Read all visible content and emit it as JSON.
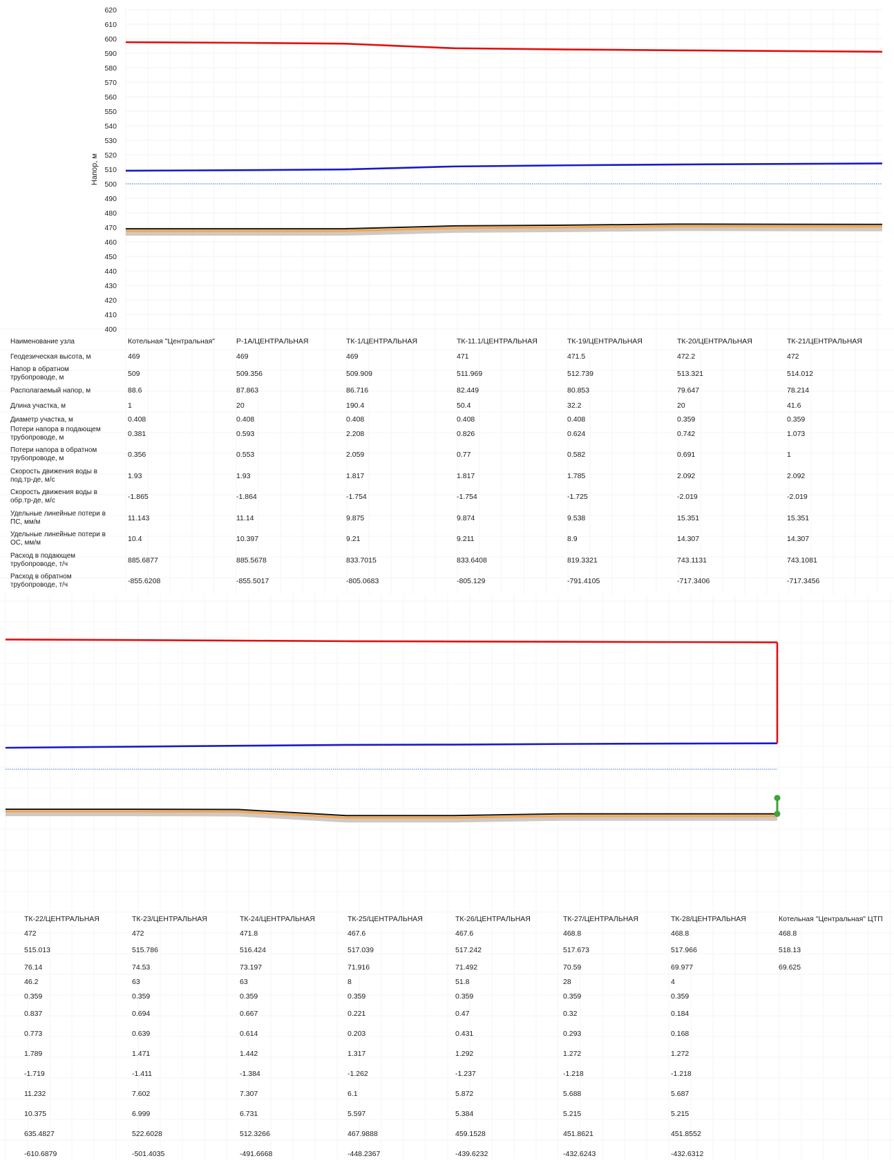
{
  "chart_data": [
    {
      "type": "line",
      "ylabel": "Напор, м",
      "ylim": [
        400,
        620
      ],
      "yticks": [
        400,
        410,
        420,
        430,
        440,
        450,
        460,
        470,
        480,
        490,
        500,
        510,
        520,
        530,
        540,
        550,
        560,
        570,
        580,
        590,
        600,
        610,
        620
      ],
      "static_level": 500,
      "x_nodes": [
        "Котельная \"Центральная\"",
        "Р-1А/ЦЕНТРАЛЬНАЯ",
        "ТК-1/ЦЕНТРАЛЬНАЯ",
        "ТК-11.1/ЦЕНТРАЛЬНАЯ",
        "ТК-19/ЦЕНТРАЛЬНАЯ",
        "ТК-20/ЦЕНТРАЛЬНАЯ",
        "ТК-21/ЦЕНТРАЛЬНАЯ"
      ],
      "series": [
        {
          "color": "#e01010",
          "values": [
            597.6,
            597.2,
            596.6,
            593.4,
            592.6,
            592.0,
            591.0
          ]
        },
        {
          "color": "#1a1ac8",
          "values": [
            509,
            509.356,
            509.909,
            511.969,
            512.739,
            513.321,
            514.012
          ]
        },
        {
          "color": "#111111",
          "values": [
            469,
            469,
            469,
            471,
            471.5,
            472.2,
            472
          ]
        }
      ],
      "table": {
        "header_label": "Наименование узла",
        "row_labels": [
          [
            "Геодезическая высота, м"
          ],
          [
            "Напор в обратном",
            "трубопроводе, м"
          ],
          [
            "Располагаемый напор, м"
          ],
          [
            "Длина участка, м"
          ],
          [
            "Диаметр участка, м"
          ],
          [
            "Потери напора в подающем",
            "трубопроводе, м"
          ],
          [
            "Потери напора в обратном",
            "трубопроводе, м"
          ],
          [
            "Скорость движения воды в",
            "под.тр-де, м/с"
          ],
          [
            "Скорость движения воды в",
            "обр.тр-де, м/с"
          ],
          [
            "Удельные линейные потери в",
            "ПС, мм/м"
          ],
          [
            "Удельные линейные потери в",
            "ОС, мм/м"
          ],
          [
            "Расход в подающем",
            "трубопроводе, т/ч"
          ],
          [
            "Расход в обратном",
            "трубопроводе, т/ч"
          ]
        ],
        "columns": [
          {
            "name": "Котельная \"Центральная\"",
            "values": [
              "469",
              "509",
              "88.6",
              "1",
              "0.408",
              "0.381",
              "0.356",
              "1.93",
              "-1.865",
              "11.143",
              "10.4",
              "885.6877",
              "-855.6208"
            ]
          },
          {
            "name": "Р-1А/ЦЕНТРАЛЬНАЯ",
            "values": [
              "469",
              "509.356",
              "87.863",
              "20",
              "0.408",
              "0.593",
              "0.553",
              "1.93",
              "-1.864",
              "11.14",
              "10.397",
              "885.5678",
              "-855.5017"
            ]
          },
          {
            "name": "ТК-1/ЦЕНТРАЛЬНАЯ",
            "values": [
              "469",
              "509.909",
              "86.716",
              "190.4",
              "0.408",
              "2.208",
              "2.059",
              "1.817",
              "-1.754",
              "9.875",
              "9.21",
              "833.7015",
              "-805.0683"
            ]
          },
          {
            "name": "ТК-11.1/ЦЕНТРАЛЬНАЯ",
            "values": [
              "471",
              "511.969",
              "82.449",
              "50.4",
              "0.408",
              "0.826",
              "0.77",
              "1.817",
              "-1.754",
              "9.874",
              "9.211",
              "833.6408",
              "-805.129"
            ]
          },
          {
            "name": "ТК-19/ЦЕНТРАЛЬНАЯ",
            "values": [
              "471.5",
              "512.739",
              "80.853",
              "32.2",
              "0.408",
              "0.624",
              "0.582",
              "1.785",
              "-1.725",
              "9.538",
              "8.9",
              "819.3321",
              "-791.4105"
            ]
          },
          {
            "name": "ТК-20/ЦЕНТРАЛЬНАЯ",
            "values": [
              "472.2",
              "513.321",
              "79.647",
              "20",
              "0.359",
              "0.742",
              "0.691",
              "2.092",
              "-2.019",
              "15.351",
              "14.307",
              "743.1131",
              "-717.3406"
            ]
          },
          {
            "name": "ТК-21/ЦЕНТРАЛЬНАЯ",
            "values": [
              "472",
              "514.012",
              "78.214",
              "41.6",
              "0.359",
              "1.073",
              "1",
              "2.092",
              "-2.019",
              "15.351",
              "14.307",
              "743.1081",
              "-717.3456"
            ]
          }
        ]
      }
    },
    {
      "type": "line",
      "ylim": [
        400,
        620
      ],
      "static_level": 500,
      "x_nodes": [
        "ТК-22/ЦЕНТРАЛЬНАЯ",
        "ТК-23/ЦЕНТРАЛЬНАЯ",
        "ТК-24/ЦЕНТРАЛЬНАЯ",
        "ТК-25/ЦЕНТРАЛЬНАЯ",
        "ТК-26/ЦЕНТРАЛЬНАЯ",
        "ТК-27/ЦЕНТРАЛЬНАЯ",
        "ТК-28/ЦЕНТРАЛЬНАЯ",
        "Котельная \"Центральная\" ЦТП"
      ],
      "series": [
        {
          "color": "#e01010",
          "values": [
            590.8,
            590.4,
            590.0,
            589.6,
            589.4,
            589.2,
            589.0,
            588.8
          ]
        },
        {
          "color": "#1a1ac8",
          "values": [
            515.013,
            515.786,
            516.424,
            517.039,
            517.242,
            517.673,
            517.966,
            518.13
          ]
        },
        {
          "color": "#111111",
          "values": [
            472,
            472,
            471.8,
            467.6,
            467.6,
            468.8,
            468.8,
            468.8
          ]
        }
      ],
      "table": {
        "columns": [
          {
            "name": "ТК-22/ЦЕНТРАЛЬНАЯ",
            "values": [
              "472",
              "515.013",
              "76.14",
              "46.2",
              "0.359",
              "0.837",
              "0.773",
              "1.789",
              "-1.719",
              "11.232",
              "10.375",
              "635.4827",
              "-610.6879"
            ]
          },
          {
            "name": "ТК-23/ЦЕНТРАЛЬНАЯ",
            "values": [
              "472",
              "515.786",
              "74.53",
              "63",
              "0.359",
              "0.694",
              "0.639",
              "1.471",
              "-1.411",
              "7.602",
              "6.999",
              "522.6028",
              "-501.4035"
            ]
          },
          {
            "name": "ТК-24/ЦЕНТРАЛЬНАЯ",
            "values": [
              "471.8",
              "516.424",
              "73.197",
              "63",
              "0.359",
              "0.667",
              "0.614",
              "1.442",
              "-1.384",
              "7.307",
              "6.731",
              "512.3266",
              "-491.6668"
            ]
          },
          {
            "name": "ТК-25/ЦЕНТРАЛЬНАЯ",
            "values": [
              "467.6",
              "517.039",
              "71.916",
              "8",
              "0.359",
              "0.221",
              "0.203",
              "1.317",
              "-1.262",
              "6.1",
              "5.597",
              "467.9888",
              "-448.2367"
            ]
          },
          {
            "name": "ТК-26/ЦЕНТРАЛЬНАЯ",
            "values": [
              "467.6",
              "517.242",
              "71.492",
              "51.8",
              "0.359",
              "0.47",
              "0.431",
              "1.292",
              "-1.237",
              "5.872",
              "5.384",
              "459.1528",
              "-439.6232"
            ]
          },
          {
            "name": "ТК-27/ЦЕНТРАЛЬНАЯ",
            "values": [
              "468.8",
              "517.673",
              "70.59",
              "28",
              "0.359",
              "0.32",
              "0.293",
              "1.272",
              "-1.218",
              "5.688",
              "5.215",
              "451.8621",
              "-432.6243"
            ]
          },
          {
            "name": "ТК-28/ЦЕНТРАЛЬНАЯ",
            "values": [
              "468.8",
              "517.966",
              "69.977",
              "4",
              "0.359",
              "0.184",
              "0.168",
              "1.272",
              "-1.218",
              "5.687",
              "5.215",
              "451.8552",
              "-432.6312"
            ]
          },
          {
            "name": "Котельная \"Центральная\" ЦТП",
            "values": [
              "468.8",
              "518.13",
              "69.625",
              "",
              "",
              "",
              "",
              "",
              "",
              "",
              "",
              "",
              ""
            ]
          }
        ]
      }
    }
  ]
}
